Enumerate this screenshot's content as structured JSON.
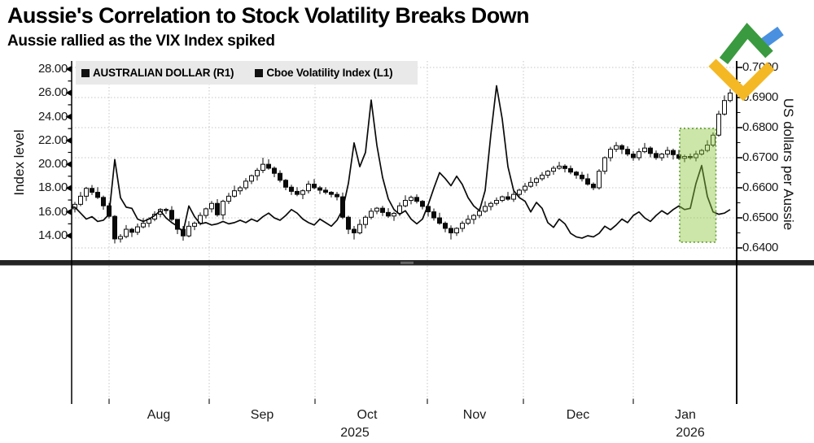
{
  "header": {
    "title": "Aussie's Correlation to Stock Volatility Breaks Down",
    "subtitle": "Aussie rallied as the VIX Index spiked"
  },
  "legend": {
    "items": [
      {
        "marker": "black-square",
        "label": "AUSTRALIAN DOLLAR (R1)"
      },
      {
        "marker": "black-square",
        "label": "Cboe Volatility Index (L1)"
      }
    ]
  },
  "left_axis": {
    "title": "Index level",
    "tick_labels": [
      "28.00",
      "26.00",
      "24.00",
      "22.00",
      "20.00",
      "18.00",
      "16.00",
      "14.00"
    ]
  },
  "right_axis": {
    "title": "US dollars per Aussie",
    "tick_labels": [
      "0.7000",
      "0.6900",
      "0.6800",
      "0.6700",
      "0.6600",
      "0.6500",
      "0.6400"
    ]
  },
  "x_axis": {
    "month_labels": [
      "Aug",
      "Sep",
      "Oct",
      "Nov",
      "Dec",
      "Jan"
    ],
    "year_labels": [
      "2025",
      "2026"
    ]
  },
  "colors": {
    "ink": "#0a0a0a",
    "grid": "#c6c6c6",
    "legend_bg": "#e9e9e9",
    "divider": "#242424",
    "highlight_fill": "#8dc63f",
    "highlight_border": "#5f9e33",
    "logo_green": "#3a9a3f",
    "logo_yellow": "#f4b824",
    "logo_blue": "#4a90e0"
  },
  "chart_data": {
    "type": "candlestick+line",
    "title": "Aussie's Correlation to Stock Volatility Breaks Down",
    "subtitle": "Aussie rallied as the VIX Index spiked",
    "grid": "dotted horizontal lines at right-axis ticks, dotted vertical lines at month starts",
    "legend_position": "top-left inside plot",
    "months": [
      "Aug",
      "Sep",
      "Oct",
      "Nov",
      "Dec",
      "Jan"
    ],
    "years": [
      "2025",
      "2026"
    ],
    "left_axis_ticks": [
      28,
      26,
      24,
      22,
      20,
      18,
      16,
      14
    ],
    "right_axis_ticks": [
      0.7,
      0.69,
      0.68,
      0.67,
      0.66,
      0.65,
      0.64
    ],
    "highlight_box": {
      "from_candle": 106,
      "to_candle": 112,
      "right_axis_range": [
        0.6419,
        0.6797
      ],
      "style": "translucent green fill with dotted green border"
    },
    "series": [
      {
        "name": "AUSTRALIAN DOLLAR (R1)",
        "type": "candlestick",
        "axis": "right",
        "ohlc": [
          [
            0.653,
            0.6553,
            0.6518,
            0.6545
          ],
          [
            0.6545,
            0.6586,
            0.6539,
            0.6572
          ],
          [
            0.6572,
            0.6603,
            0.6556,
            0.6598
          ],
          [
            0.6598,
            0.6609,
            0.6576,
            0.6585
          ],
          [
            0.6585,
            0.6602,
            0.6563,
            0.6568
          ],
          [
            0.6568,
            0.6574,
            0.6527,
            0.654
          ],
          [
            0.654,
            0.655,
            0.6498,
            0.6505
          ],
          [
            0.6505,
            0.6509,
            0.6415,
            0.643
          ],
          [
            0.643,
            0.6446,
            0.6418,
            0.6438
          ],
          [
            0.6438,
            0.6476,
            0.6432,
            0.6462
          ],
          [
            0.6462,
            0.6467,
            0.6436,
            0.6452
          ],
          [
            0.6452,
            0.6481,
            0.6443,
            0.647
          ],
          [
            0.647,
            0.6499,
            0.6465,
            0.6482
          ],
          [
            0.6482,
            0.6502,
            0.6469,
            0.6496
          ],
          [
            0.6496,
            0.6522,
            0.6489,
            0.6512
          ],
          [
            0.6512,
            0.6532,
            0.6502,
            0.6528
          ],
          [
            0.6528,
            0.6533,
            0.6513,
            0.6525
          ],
          [
            0.6525,
            0.6539,
            0.6489,
            0.6495
          ],
          [
            0.6495,
            0.6467,
            0.6446,
            0.6462
          ],
          [
            0.6462,
            0.6473,
            0.6424,
            0.644
          ],
          [
            0.644,
            0.6489,
            0.6435,
            0.6472
          ],
          [
            0.6472,
            0.6488,
            0.6459,
            0.6482
          ],
          [
            0.6482,
            0.6518,
            0.6475,
            0.6508
          ],
          [
            0.6508,
            0.6534,
            0.6498,
            0.653
          ],
          [
            0.653,
            0.6556,
            0.6518,
            0.6548
          ],
          [
            0.6548,
            0.6562,
            0.6504,
            0.651
          ],
          [
            0.651,
            0.656,
            0.6494,
            0.6555
          ],
          [
            0.6555,
            0.6583,
            0.6546,
            0.6572
          ],
          [
            0.6572,
            0.6607,
            0.6567,
            0.659
          ],
          [
            0.659,
            0.6606,
            0.6577,
            0.66
          ],
          [
            0.66,
            0.6632,
            0.6593,
            0.6622
          ],
          [
            0.6622,
            0.6644,
            0.6612,
            0.664
          ],
          [
            0.664,
            0.6666,
            0.6624,
            0.6658
          ],
          [
            0.6658,
            0.67,
            0.6649,
            0.6678
          ],
          [
            0.6678,
            0.6695,
            0.666,
            0.6665
          ],
          [
            0.6665,
            0.6671,
            0.6635,
            0.6648
          ],
          [
            0.6648,
            0.6658,
            0.6618,
            0.6625
          ],
          [
            0.6625,
            0.6629,
            0.6592,
            0.6602
          ],
          [
            0.6602,
            0.661,
            0.6576,
            0.6588
          ],
          [
            0.6588,
            0.6602,
            0.6572,
            0.6578
          ],
          [
            0.6578,
            0.6595,
            0.6562,
            0.659
          ],
          [
            0.659,
            0.6623,
            0.6581,
            0.6612
          ],
          [
            0.6612,
            0.6629,
            0.6595,
            0.66
          ],
          [
            0.66,
            0.6606,
            0.6579,
            0.6592
          ],
          [
            0.6592,
            0.6602,
            0.6578,
            0.6585
          ],
          [
            0.6585,
            0.6589,
            0.6568,
            0.6578
          ],
          [
            0.6578,
            0.6586,
            0.6558,
            0.657
          ],
          [
            0.657,
            0.6584,
            0.6496,
            0.6502
          ],
          [
            0.6502,
            0.6507,
            0.6446,
            0.6462
          ],
          [
            0.6462,
            0.6473,
            0.6428,
            0.645
          ],
          [
            0.645,
            0.6495,
            0.6445,
            0.6478
          ],
          [
            0.6478,
            0.6508,
            0.6465,
            0.6502
          ],
          [
            0.6502,
            0.6532,
            0.6495,
            0.6522
          ],
          [
            0.6522,
            0.6536,
            0.6512,
            0.6532
          ],
          [
            0.6532,
            0.654,
            0.6506,
            0.6518
          ],
          [
            0.6518,
            0.6532,
            0.65,
            0.6506
          ],
          [
            0.6506,
            0.652,
            0.649,
            0.6515
          ],
          [
            0.6515,
            0.6551,
            0.6506,
            0.654
          ],
          [
            0.654,
            0.6575,
            0.6535,
            0.6558
          ],
          [
            0.6558,
            0.6574,
            0.6545,
            0.6568
          ],
          [
            0.6568,
            0.6578,
            0.6548,
            0.6555
          ],
          [
            0.6555,
            0.6559,
            0.6528,
            0.6538
          ],
          [
            0.6538,
            0.6543,
            0.6504,
            0.652
          ],
          [
            0.652,
            0.6531,
            0.6491,
            0.65
          ],
          [
            0.65,
            0.6517,
            0.6477,
            0.6482
          ],
          [
            0.6482,
            0.6488,
            0.6452,
            0.6465
          ],
          [
            0.6465,
            0.6475,
            0.6428,
            0.645
          ],
          [
            0.645,
            0.6469,
            0.644,
            0.6465
          ],
          [
            0.6465,
            0.649,
            0.6453,
            0.6482
          ],
          [
            0.6482,
            0.6509,
            0.6476,
            0.6495
          ],
          [
            0.6495,
            0.6513,
            0.6479,
            0.6508
          ],
          [
            0.6508,
            0.6533,
            0.6499,
            0.6522
          ],
          [
            0.6522,
            0.6555,
            0.6517,
            0.6538
          ],
          [
            0.6538,
            0.6554,
            0.6525,
            0.6548
          ],
          [
            0.6548,
            0.6568,
            0.6541,
            0.6558
          ],
          [
            0.6558,
            0.6574,
            0.6552,
            0.657
          ],
          [
            0.657,
            0.6586,
            0.6557,
            0.6562
          ],
          [
            0.6562,
            0.6589,
            0.6553,
            0.6578
          ],
          [
            0.6578,
            0.6597,
            0.6571,
            0.6592
          ],
          [
            0.6592,
            0.6616,
            0.6583,
            0.6605
          ],
          [
            0.6605,
            0.6635,
            0.66,
            0.6618
          ],
          [
            0.6618,
            0.6636,
            0.6605,
            0.663
          ],
          [
            0.663,
            0.6652,
            0.6623,
            0.6642
          ],
          [
            0.6642,
            0.6659,
            0.6632,
            0.6655
          ],
          [
            0.6655,
            0.6673,
            0.6643,
            0.6665
          ],
          [
            0.6665,
            0.6686,
            0.666,
            0.6672
          ],
          [
            0.6672,
            0.6678,
            0.6651,
            0.6664
          ],
          [
            0.6664,
            0.6674,
            0.6645,
            0.6652
          ],
          [
            0.6652,
            0.6656,
            0.663,
            0.6642
          ],
          [
            0.6642,
            0.6653,
            0.6621,
            0.663
          ],
          [
            0.663,
            0.6647,
            0.6607,
            0.6612
          ],
          [
            0.6612,
            0.6618,
            0.6592,
            0.66
          ],
          [
            0.66,
            0.6662,
            0.6594,
            0.6655
          ],
          [
            0.6655,
            0.6704,
            0.6645,
            0.67
          ],
          [
            0.67,
            0.6736,
            0.6688,
            0.6728
          ],
          [
            0.6728,
            0.6752,
            0.6719,
            0.674
          ],
          [
            0.674,
            0.6745,
            0.6712,
            0.6728
          ],
          [
            0.6728,
            0.6738,
            0.6705,
            0.6712
          ],
          [
            0.6712,
            0.6722,
            0.669,
            0.67
          ],
          [
            0.67,
            0.6731,
            0.6691,
            0.672
          ],
          [
            0.672,
            0.6749,
            0.6715,
            0.6732
          ],
          [
            0.6732,
            0.6738,
            0.6701,
            0.6714
          ],
          [
            0.6714,
            0.6724,
            0.6693,
            0.67
          ],
          [
            0.67,
            0.6716,
            0.669,
            0.6712
          ],
          [
            0.6712,
            0.6736,
            0.67,
            0.6724
          ],
          [
            0.6724,
            0.673,
            0.6694,
            0.671
          ],
          [
            0.671,
            0.6726,
            0.6693,
            0.6698
          ],
          [
            0.6698,
            0.671,
            0.6685,
            0.6704
          ],
          [
            0.6704,
            0.6714,
            0.6694,
            0.67
          ],
          [
            0.67,
            0.6723,
            0.6688,
            0.6712
          ],
          [
            0.6712,
            0.6729,
            0.6707,
            0.6724
          ],
          [
            0.6724,
            0.6758,
            0.6718,
            0.6742
          ],
          [
            0.6742,
            0.6784,
            0.6735,
            0.6775
          ],
          [
            0.6775,
            0.6856,
            0.677,
            0.6845
          ],
          [
            0.6845,
            0.6907,
            0.684,
            0.689
          ],
          [
            0.689,
            0.6928,
            0.6884,
            0.6915
          ]
        ]
      },
      {
        "name": "Cboe Volatility Index (L1)",
        "type": "line",
        "axis": "left",
        "values": [
          16.4,
          15.9,
          15.4,
          15.6,
          15.2,
          15.3,
          15.8,
          20.4,
          17.2,
          16.4,
          16.3,
          15.4,
          15.2,
          15.4,
          15.7,
          16.1,
          15.5,
          15.1,
          14.8,
          14.3,
          16.5,
          15.6,
          15.0,
          15.1,
          14.9,
          15.0,
          15.2,
          15.0,
          15.1,
          15.3,
          15.1,
          15.4,
          15.2,
          15.6,
          15.9,
          15.5,
          15.3,
          15.7,
          16.2,
          15.9,
          15.4,
          15.1,
          14.9,
          15.4,
          15.1,
          14.8,
          15.3,
          16.2,
          18.4,
          21.8,
          19.8,
          21.0,
          25.4,
          21.6,
          18.9,
          17.1,
          16.2,
          15.8,
          16.1,
          15.4,
          15.0,
          15.4,
          16.6,
          18.0,
          19.3,
          18.8,
          18.2,
          19.0,
          18.3,
          17.2,
          16.5,
          16.1,
          17.8,
          22.5,
          26.6,
          23.8,
          19.8,
          17.8,
          17.2,
          16.9,
          16.0,
          16.8,
          16.3,
          15.1,
          14.7,
          15.4,
          15.0,
          14.2,
          13.9,
          13.8,
          14.0,
          13.9,
          14.2,
          14.8,
          14.5,
          14.9,
          15.4,
          15.1,
          15.7,
          16.0,
          15.5,
          15.2,
          15.7,
          16.1,
          15.8,
          16.2,
          16.5,
          16.2,
          16.3,
          18.4,
          19.9,
          17.3,
          16.0,
          15.8,
          15.9,
          16.2
        ]
      }
    ]
  }
}
